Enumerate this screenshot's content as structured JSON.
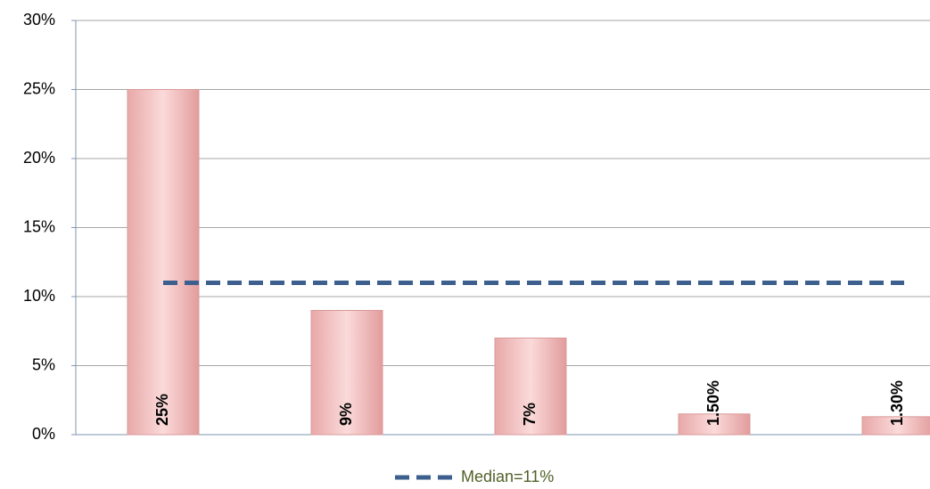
{
  "chart_data": {
    "type": "bar",
    "categories": [
      null,
      null,
      null,
      null,
      null
    ],
    "values": [
      25,
      9,
      7,
      1.5,
      1.3
    ],
    "value_labels": [
      "25%",
      "9%",
      "7%",
      "1.50%",
      "1.30%"
    ],
    "color": "#f2bcbc",
    "ylim": [
      0,
      30
    ],
    "yticks": [
      {
        "value": 0,
        "label": "0%"
      },
      {
        "value": 5,
        "label": "5%"
      },
      {
        "value": 10,
        "label": "10%"
      },
      {
        "value": 15,
        "label": "15%"
      },
      {
        "value": 20,
        "label": "20%"
      },
      {
        "value": 25,
        "label": "25%"
      },
      {
        "value": 30,
        "label": "30%"
      }
    ],
    "grid": true,
    "median": {
      "name": "Median=11%",
      "value": 11,
      "color": "#3c5f8d"
    }
  }
}
